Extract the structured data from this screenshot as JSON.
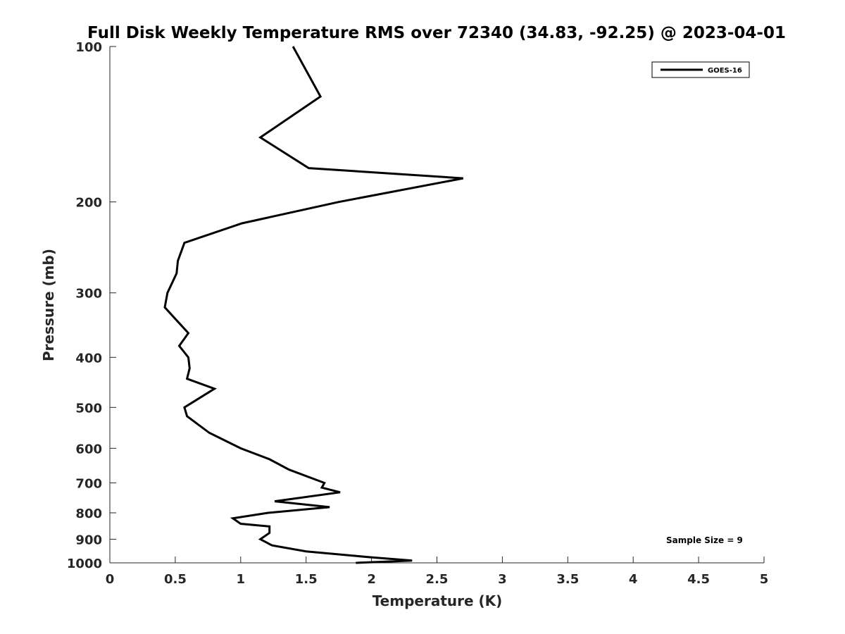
{
  "chart_data": {
    "type": "line",
    "title": "Full Disk Weekly Temperature RMS over 72340 (34.83, -92.25) @ 2023-04-01",
    "xlabel": "Temperature (K)",
    "ylabel": "Pressure (mb)",
    "xlim": [
      0,
      5
    ],
    "ylim": [
      100,
      1000
    ],
    "y_scale": "log",
    "y_reversed": true,
    "x_ticks": [
      "0",
      "0.5",
      "1",
      "1.5",
      "2",
      "2.5",
      "3",
      "3.5",
      "4",
      "4.5",
      "5"
    ],
    "y_ticks": [
      "100",
      "200",
      "300",
      "400",
      "500",
      "600",
      "700",
      "800",
      "900",
      "1000"
    ],
    "grid": false,
    "legend": {
      "placement": "top-right",
      "entries": [
        "GOES-16"
      ]
    },
    "annotations": [
      "Sample Size = 9"
    ],
    "series": [
      {
        "name": "GOES-16",
        "color": "#000000",
        "points": [
          [
            1.4,
            100
          ],
          [
            1.61,
            125
          ],
          [
            1.15,
            150
          ],
          [
            1.52,
            172
          ],
          [
            2.7,
            180
          ],
          [
            1.75,
            200
          ],
          [
            1.01,
            220
          ],
          [
            0.57,
            240
          ],
          [
            0.52,
            260
          ],
          [
            0.51,
            275
          ],
          [
            0.44,
            300
          ],
          [
            0.42,
            320
          ],
          [
            0.6,
            359
          ],
          [
            0.53,
            380
          ],
          [
            0.6,
            400
          ],
          [
            0.61,
            420
          ],
          [
            0.59,
            440
          ],
          [
            0.8,
            460
          ],
          [
            0.57,
            500
          ],
          [
            0.59,
            520
          ],
          [
            0.76,
            560
          ],
          [
            1.0,
            600
          ],
          [
            1.22,
            630
          ],
          [
            1.37,
            660
          ],
          [
            1.64,
            700
          ],
          [
            1.62,
            715
          ],
          [
            1.76,
            730
          ],
          [
            1.26,
            760
          ],
          [
            1.68,
            780
          ],
          [
            1.21,
            800
          ],
          [
            0.94,
            820
          ],
          [
            1.0,
            840
          ],
          [
            1.22,
            850
          ],
          [
            1.22,
            875
          ],
          [
            1.15,
            900
          ],
          [
            1.24,
            925
          ],
          [
            1.5,
            950
          ],
          [
            1.98,
            975
          ],
          [
            2.31,
            990
          ],
          [
            1.88,
            1000
          ]
        ]
      }
    ]
  }
}
